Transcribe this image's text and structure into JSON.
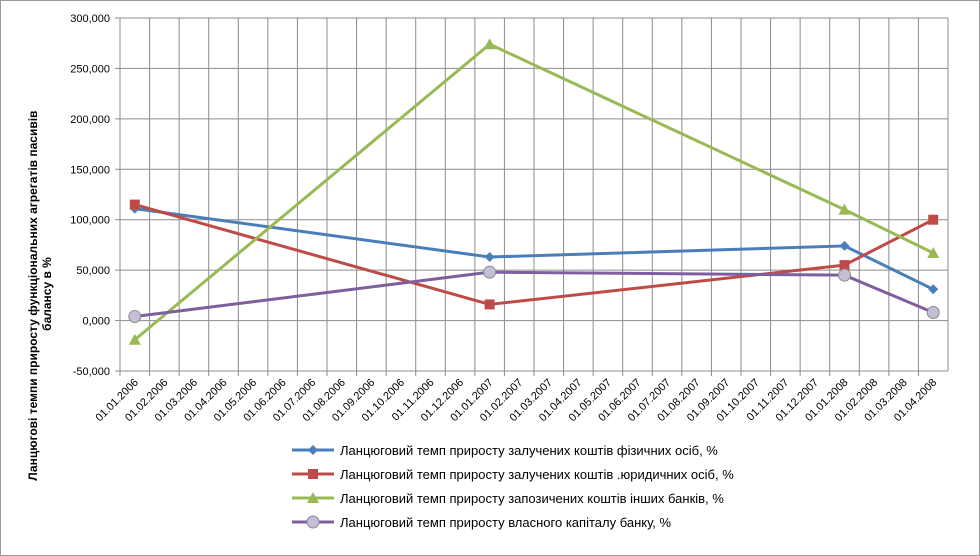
{
  "chart_data": {
    "type": "line",
    "ylabel_lines": [
      "Ланцюгові темпи приросту функціональних агрегатів пасивів",
      "балансу в %"
    ],
    "xlabel": "",
    "ylim": [
      -50,
      300
    ],
    "y_ticks": [
      -50,
      0,
      50,
      100,
      150,
      200,
      250,
      300
    ],
    "y_tick_labels": [
      "-50,000",
      "0,000",
      "50,000",
      "100,000",
      "150,000",
      "200,000",
      "250,000",
      "300,000"
    ],
    "categories": [
      "01.01.2006",
      "01.02.2006",
      "01.03.2006",
      "01.04.2006",
      "01.05.2006",
      "01.06.2006",
      "01.07.2006",
      "01.08.2006",
      "01.09.2006",
      "01.10.2006",
      "01.11.2006",
      "01.12.2006",
      "01.01.2007",
      "01.02.2007",
      "01.03.2007",
      "01.04.2007",
      "01.05.2007",
      "01.06.2007",
      "01.07.2007",
      "01.08.2007",
      "01.09.2007",
      "01.10.2007",
      "01.11.2007",
      "01.12.2007",
      "01.01.2008",
      "01.02.2008",
      "01.03.2008",
      "01.04.2008"
    ],
    "grid": true,
    "legend_position": "bottom",
    "series": [
      {
        "name": "Ланцюговий темп приросту залучених коштів фізичних осіб, %",
        "color": "#4a7ebb",
        "marker": "diamond",
        "points": [
          {
            "x": "01.01.2006",
            "y": 111
          },
          {
            "x": "01.01.2007",
            "y": 63
          },
          {
            "x": "01.01.2008",
            "y": 74
          },
          {
            "x": "01.04.2008",
            "y": 31
          }
        ]
      },
      {
        "name": "Ланцюговий темп приросту залучених коштів .юридичних осіб, %",
        "color": "#be4b48",
        "marker": "square",
        "points": [
          {
            "x": "01.01.2006",
            "y": 115
          },
          {
            "x": "01.01.2007",
            "y": 16
          },
          {
            "x": "01.01.2008",
            "y": 55
          },
          {
            "x": "01.04.2008",
            "y": 100
          }
        ]
      },
      {
        "name": "Ланцюговий темп приросту запозичених коштів інших банків, %",
        "color": "#98b954",
        "marker": "triangle",
        "points": [
          {
            "x": "01.01.2006",
            "y": -19
          },
          {
            "x": "01.01.2007",
            "y": 274
          },
          {
            "x": "01.01.2008",
            "y": 110
          },
          {
            "x": "01.04.2008",
            "y": 67
          }
        ]
      },
      {
        "name": "Ланцюговий темп приросту власного капіталу банку, %",
        "color": "#7d5fa0",
        "marker": "circle",
        "points": [
          {
            "x": "01.01.2006",
            "y": 4
          },
          {
            "x": "01.01.2007",
            "y": 48
          },
          {
            "x": "01.01.2008",
            "y": 45
          },
          {
            "x": "01.04.2008",
            "y": 8
          }
        ]
      }
    ]
  }
}
